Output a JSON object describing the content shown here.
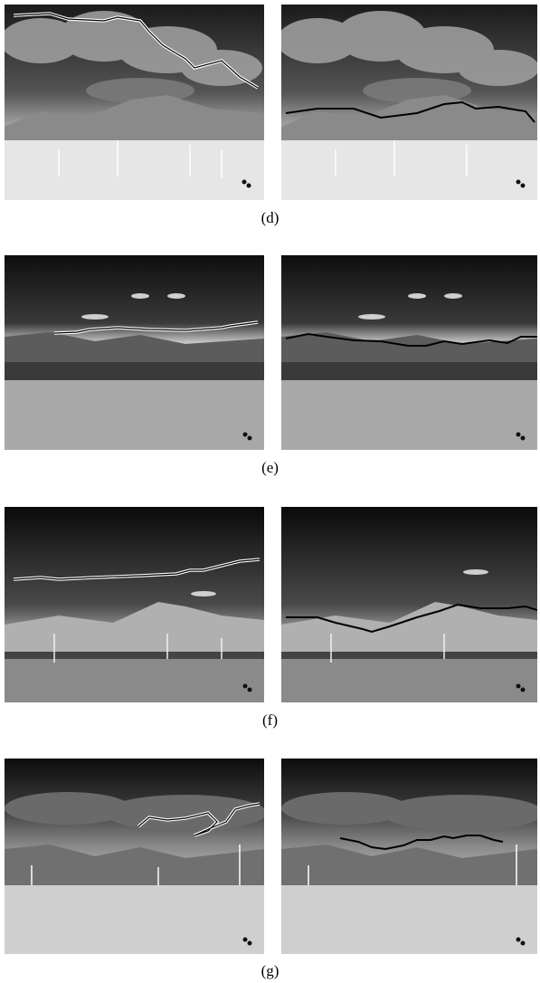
{
  "figure": {
    "rows": [
      {
        "label": "(d)",
        "scene": "cloudy"
      },
      {
        "label": "(e)",
        "scene": "clear-sky"
      },
      {
        "label": "(f)",
        "scene": "dark-sky"
      },
      {
        "label": "(g)",
        "scene": "cloudy-night"
      }
    ]
  }
}
